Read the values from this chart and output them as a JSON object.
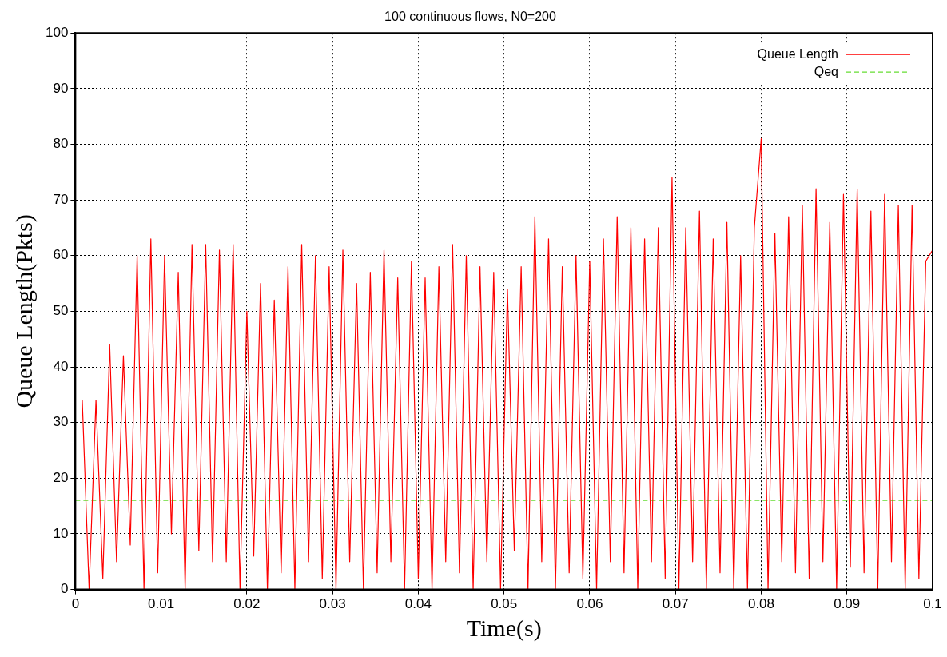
{
  "chart_data": {
    "type": "line",
    "title": "100 continuous flows, N0=200",
    "xlabel": "Time(s)",
    "ylabel": "Queue Length(Pkts)",
    "xlim": [
      0,
      0.1
    ],
    "xticks": [
      0,
      0.01,
      0.02,
      0.03,
      0.04,
      0.05,
      0.06,
      0.07,
      0.08,
      0.09,
      0.1
    ],
    "ylim": [
      0,
      100
    ],
    "yticks": [
      0,
      10,
      20,
      30,
      40,
      50,
      60,
      70,
      80,
      90,
      100
    ],
    "grid": true,
    "legend": "top right",
    "marker": "none",
    "series": [
      {
        "name": "Queue Length",
        "color": "#ff0000",
        "line_style": "solid",
        "x": [
          0.0008,
          0.0016,
          0.0024,
          0.0032,
          0.004,
          0.0048,
          0.0056,
          0.0064,
          0.0072,
          0.008,
          0.0088,
          0.0096,
          0.0104,
          0.0112,
          0.012,
          0.0128,
          0.0136,
          0.0144,
          0.0152,
          0.016,
          0.0168,
          0.0176,
          0.0184,
          0.0192,
          0.02,
          0.0208,
          0.0216,
          0.0224,
          0.0232,
          0.024,
          0.0248,
          0.0256,
          0.0264,
          0.0272,
          0.028,
          0.0288,
          0.0296,
          0.0304,
          0.0312,
          0.032,
          0.0328,
          0.0336,
          0.0344,
          0.0352,
          0.036,
          0.0368,
          0.0376,
          0.0384,
          0.0392,
          0.04,
          0.0408,
          0.0416,
          0.0424,
          0.0432,
          0.044,
          0.0448,
          0.0456,
          0.0464,
          0.0472,
          0.048,
          0.0488,
          0.0496,
          0.0504,
          0.0512,
          0.052,
          0.0528,
          0.0536,
          0.0544,
          0.0552,
          0.056,
          0.0568,
          0.0576,
          0.0584,
          0.0592,
          0.06,
          0.0608,
          0.0616,
          0.0624,
          0.0632,
          0.064,
          0.0648,
          0.0656,
          0.0664,
          0.0672,
          0.068,
          0.0688,
          0.0696,
          0.0704,
          0.0712,
          0.072,
          0.0728,
          0.0736,
          0.0744,
          0.0752,
          0.076,
          0.0768,
          0.0776,
          0.0784,
          0.0792,
          0.08,
          0.0808,
          0.0816,
          0.0824,
          0.0832,
          0.084,
          0.0848,
          0.0856,
          0.0864,
          0.0872,
          0.088,
          0.0888,
          0.0896,
          0.0904,
          0.0912,
          0.092,
          0.0928,
          0.0936,
          0.0944,
          0.0952,
          0.096,
          0.0968,
          0.0976,
          0.0984,
          0.0992,
          0.1
        ],
        "values": [
          34,
          0,
          34,
          2,
          44,
          5,
          42,
          8,
          60,
          0,
          63,
          3,
          60,
          10,
          57,
          0,
          62,
          7,
          62,
          5,
          61,
          5,
          62,
          0,
          50,
          6,
          55,
          0,
          52,
          3,
          58,
          0,
          62,
          5,
          60,
          2,
          58,
          0,
          61,
          5,
          55,
          0,
          57,
          3,
          61,
          5,
          56,
          0,
          59,
          2,
          56,
          0,
          58,
          5,
          62,
          3,
          60,
          0,
          58,
          5,
          57,
          0,
          54,
          7,
          58,
          0,
          67,
          5,
          63,
          0,
          58,
          3,
          60,
          2,
          59,
          0,
          63,
          5,
          67,
          3,
          65,
          0,
          63,
          5,
          65,
          2,
          74,
          0,
          65,
          5,
          68,
          0,
          63,
          3,
          66,
          0,
          60,
          0,
          65,
          81,
          0,
          64,
          5,
          67,
          3,
          69,
          2,
          72,
          5,
          66,
          0,
          71,
          4,
          72,
          3,
          68,
          0,
          71,
          5,
          69,
          0,
          69,
          2,
          59,
          61
        ]
      },
      {
        "name": "Qeq",
        "color": "#66dd33",
        "line_style": "dashed",
        "x": [
          0,
          0.1
        ],
        "values": [
          16,
          16
        ]
      }
    ]
  }
}
